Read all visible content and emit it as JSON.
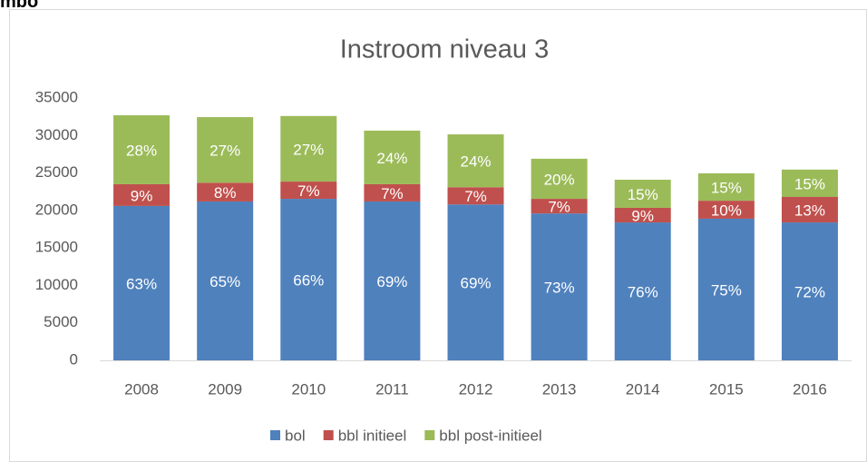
{
  "header": "mbo",
  "chart_data": {
    "type": "stacked_bar",
    "title": "Instroom niveau 3",
    "categories": [
      "2008",
      "2009",
      "2010",
      "2011",
      "2012",
      "2013",
      "2014",
      "2015",
      "2016"
    ],
    "series": [
      {
        "name": "bol",
        "color": "#4f81bd",
        "values": [
          20600,
          21200,
          21550,
          21200,
          20800,
          19600,
          18400,
          18900,
          18400
        ],
        "data_labels": [
          "63%",
          "65%",
          "66%",
          "69%",
          "69%",
          "73%",
          "76%",
          "75%",
          "72%"
        ]
      },
      {
        "name": "bbl initieel",
        "color": "#c0504d",
        "values": [
          2900,
          2500,
          2300,
          2300,
          2300,
          1950,
          1950,
          2400,
          3400
        ],
        "data_labels": [
          "9%",
          "8%",
          "7%",
          "7%",
          "7%",
          "7%",
          "9%",
          "10%",
          "13%"
        ]
      },
      {
        "name": "bbl post-initieel",
        "color": "#9bbb59",
        "values": [
          9200,
          8750,
          8750,
          7150,
          7050,
          5350,
          3750,
          3650,
          3650
        ],
        "data_labels": [
          "28%",
          "27%",
          "27%",
          "24%",
          "24%",
          "20%",
          "15%",
          "15%",
          "15%"
        ]
      }
    ],
    "ylim": [
      0,
      35000
    ],
    "yticks": [
      0,
      5000,
      10000,
      15000,
      20000,
      25000,
      30000,
      35000
    ],
    "grid": false
  }
}
